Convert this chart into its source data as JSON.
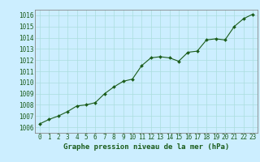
{
  "x": [
    0,
    1,
    2,
    3,
    4,
    5,
    6,
    7,
    8,
    9,
    10,
    11,
    12,
    13,
    14,
    15,
    16,
    17,
    18,
    19,
    20,
    21,
    22,
    23
  ],
  "y": [
    1006.3,
    1006.7,
    1007.0,
    1007.4,
    1007.9,
    1008.0,
    1008.2,
    1009.0,
    1009.6,
    1010.1,
    1010.3,
    1011.5,
    1012.2,
    1012.3,
    1012.2,
    1011.9,
    1012.7,
    1012.8,
    1013.8,
    1013.9,
    1013.8,
    1015.0,
    1015.7,
    1016.1
  ],
  "ylim": [
    1005.5,
    1016.5
  ],
  "xlim": [
    -0.5,
    23.5
  ],
  "yticks": [
    1006,
    1007,
    1008,
    1009,
    1010,
    1011,
    1012,
    1013,
    1014,
    1015,
    1016
  ],
  "xticks": [
    0,
    1,
    2,
    3,
    4,
    5,
    6,
    7,
    8,
    9,
    10,
    11,
    12,
    13,
    14,
    15,
    16,
    17,
    18,
    19,
    20,
    21,
    22,
    23
  ],
  "line_color": "#1a5c1a",
  "marker_color": "#1a5c1a",
  "bg_color": "#cceeff",
  "grid_color": "#aadddd",
  "label_color": "#1a5c1a",
  "title": "Graphe pression niveau de la mer (hPa)",
  "title_fontsize": 6.5,
  "tick_fontsize": 5.5,
  "border_color": "#888888"
}
